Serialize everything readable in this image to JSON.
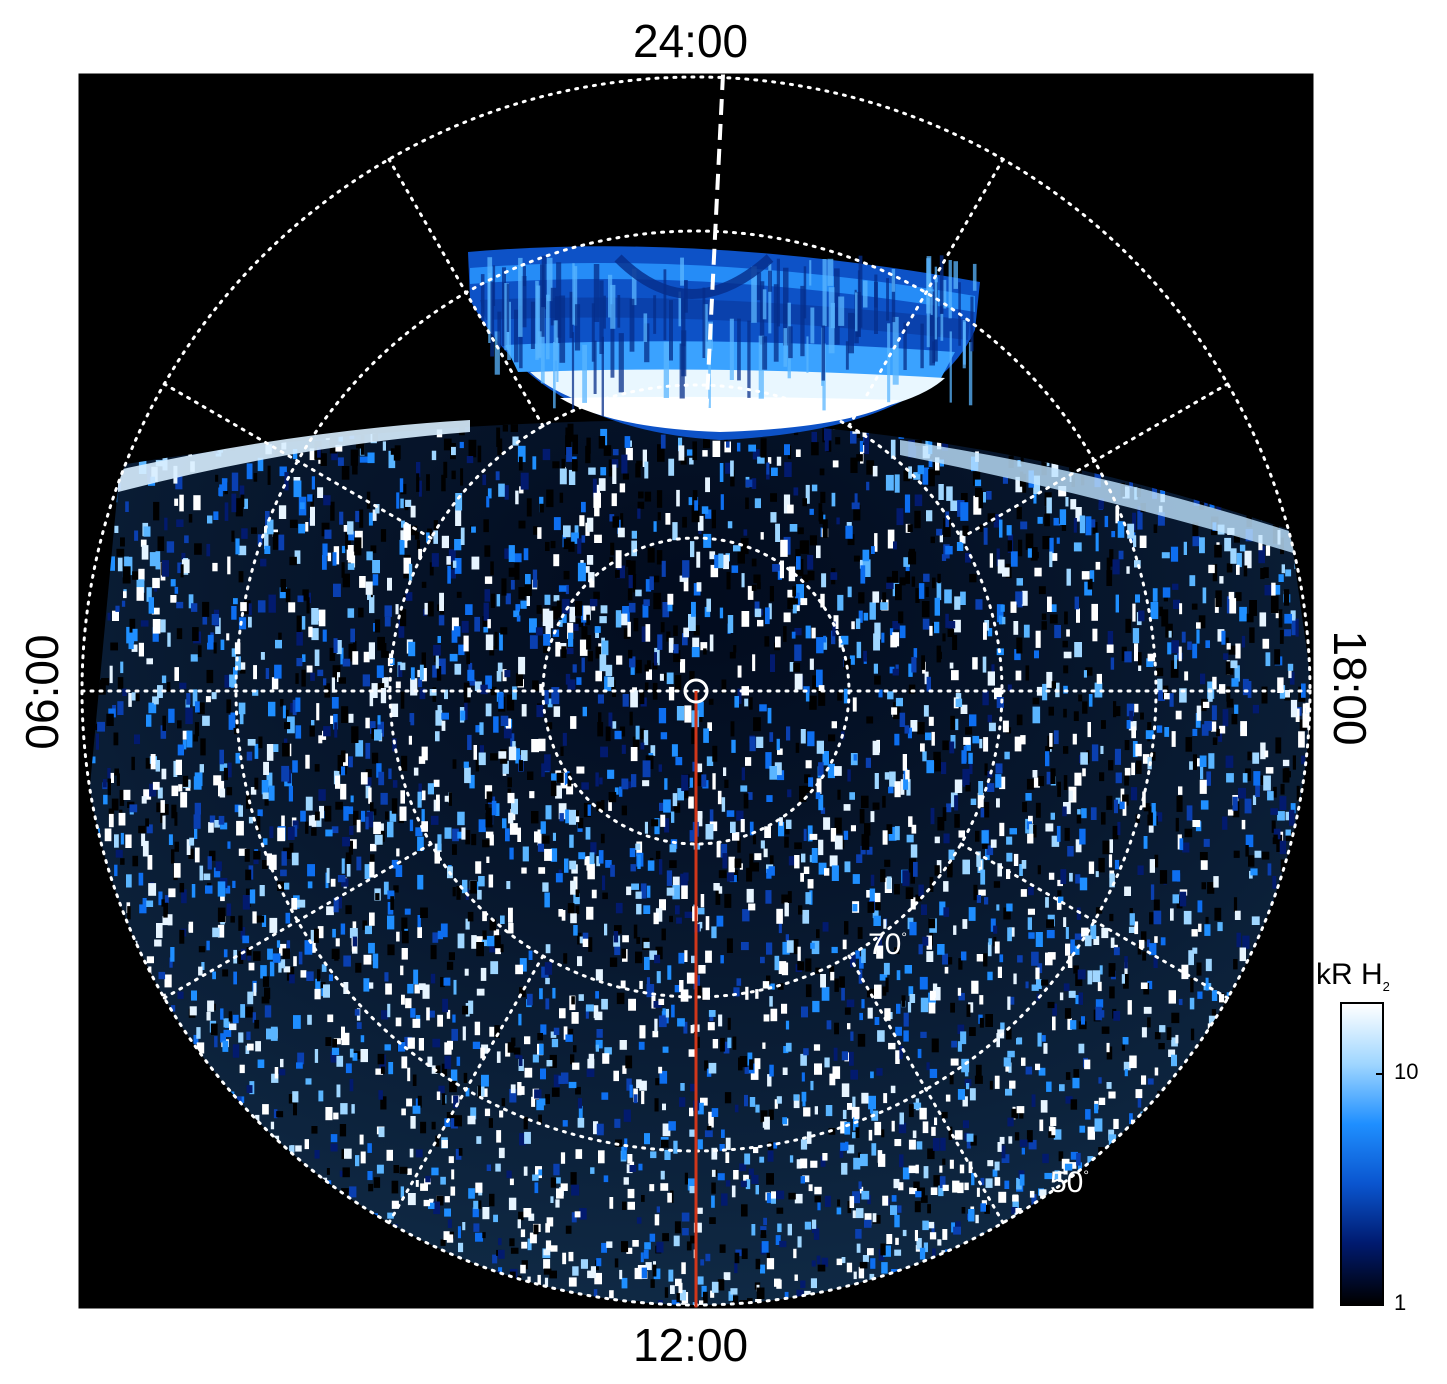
{
  "local_time_labels": {
    "top": "24:00",
    "bottom": "12:00",
    "left": "06:00",
    "right": "18:00"
  },
  "latitude_labels": {
    "lat_70": "70",
    "lat_50": "50",
    "degree_symbol": "°"
  },
  "colorbar": {
    "unit": "kR H",
    "unit_subscript": "2",
    "ticks": [
      {
        "label": "10",
        "value": 10
      },
      {
        "label": "1",
        "value": 1
      }
    ],
    "range": [
      1,
      20
    ],
    "scale": "log",
    "colors": [
      "#000000",
      "#001a6e",
      "#0a55cf",
      "#1f8fff",
      "#9fd6ff",
      "#ffffff"
    ]
  },
  "colors": {
    "background": "#000000",
    "grid": "#ffffff",
    "meridian_line": "#d1361a",
    "aurora_bright": "#eaf6ff",
    "aurora_mid": "#1f8fff",
    "aurora_dark": "#0a3fb0"
  }
}
